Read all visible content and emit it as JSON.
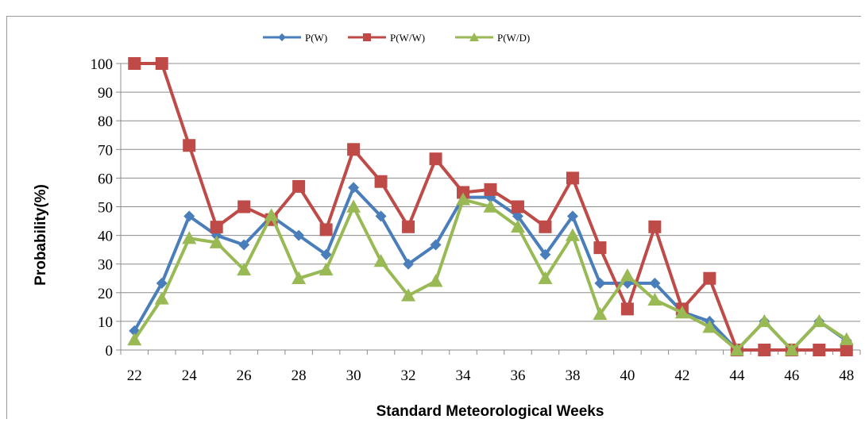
{
  "chart_data": {
    "type": "line",
    "xlabel": "Standard Meteorological Weeks",
    "ylabel": "Probability(%)",
    "ylim": [
      0,
      100
    ],
    "yticks": [
      0,
      10,
      20,
      30,
      40,
      50,
      60,
      70,
      80,
      90,
      100
    ],
    "xlim": [
      22,
      48
    ],
    "xticks": [
      22,
      24,
      26,
      28,
      30,
      32,
      34,
      36,
      38,
      40,
      42,
      44,
      46,
      48
    ],
    "x": [
      22,
      23,
      24,
      25,
      26,
      27,
      28,
      29,
      30,
      31,
      32,
      33,
      34,
      35,
      36,
      37,
      38,
      39,
      40,
      41,
      42,
      43,
      44,
      45,
      46,
      47,
      48
    ],
    "legend_position": "top",
    "grid": "horizontal",
    "series": [
      {
        "name": "P(W)",
        "color": "#4a7ebb",
        "marker": "diamond",
        "values": [
          6.7,
          23.3,
          46.7,
          40,
          36.7,
          46.7,
          40,
          33.3,
          56.7,
          46.7,
          30,
          36.7,
          53.3,
          53.3,
          46.7,
          33.3,
          46.7,
          23.3,
          23.3,
          23.3,
          13.3,
          10,
          0,
          10,
          0,
          10,
          3.3
        ]
      },
      {
        "name": "P(W/W)",
        "color": "#be4b48",
        "marker": "square",
        "values": [
          100,
          100,
          71.4,
          42.9,
          50,
          45.5,
          57.1,
          42,
          70,
          58.8,
          43,
          66.7,
          55,
          56,
          50,
          43,
          60,
          35.7,
          14.3,
          43,
          14.3,
          25,
          0,
          0,
          0,
          0,
          0
        ]
      },
      {
        "name": "P(W/D)",
        "color": "#98b954",
        "marker": "triangle",
        "values": [
          3.6,
          17.9,
          39,
          37.5,
          28,
          47,
          25,
          28,
          50,
          31,
          19,
          24,
          52.5,
          50,
          43,
          25,
          40,
          12.5,
          26,
          17.5,
          13,
          8,
          0,
          10,
          0,
          10,
          3.7
        ]
      }
    ]
  }
}
